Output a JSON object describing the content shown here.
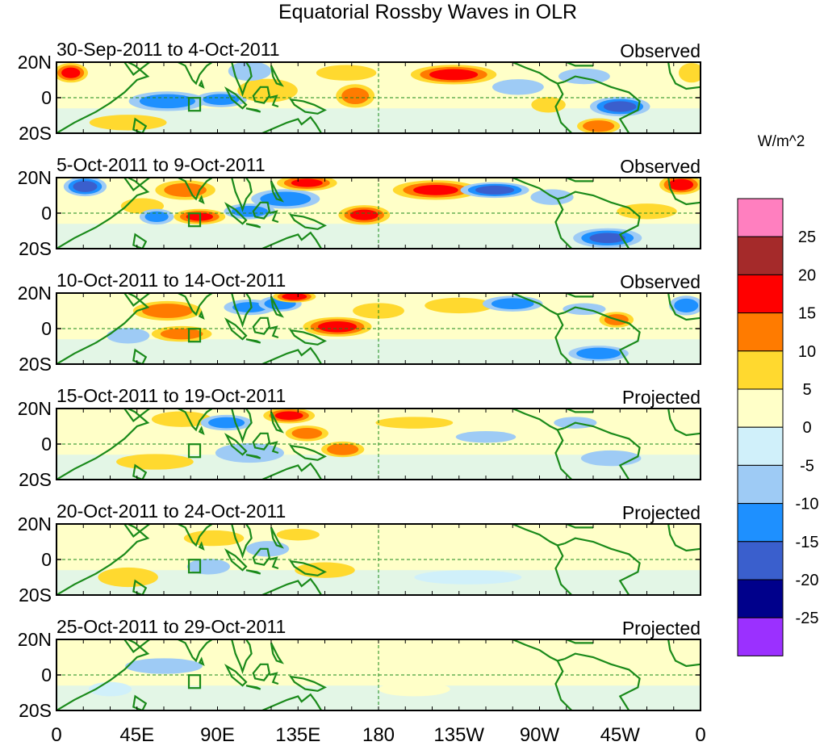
{
  "chart_data": {
    "type": "heatmap",
    "title": "Equatorial Rossby Waves in OLR",
    "xlabel": "",
    "ylabel": "",
    "x_ticks": [
      "0",
      "45E",
      "90E",
      "135E",
      "180",
      "135W",
      "90W",
      "45W",
      "0"
    ],
    "x_range": [
      0,
      360
    ],
    "y_ticks": [
      "20N",
      "0",
      "20S"
    ],
    "y_range": [
      -20,
      20
    ],
    "colorbar": {
      "units": "W/m^2",
      "levels": [
        -25,
        -20,
        -15,
        -10,
        -5,
        0,
        5,
        10,
        15,
        20,
        25
      ],
      "labels": [
        "25",
        "20",
        "15",
        "10",
        "5",
        "0",
        "-5",
        "-10",
        "-15",
        "-20",
        "-25"
      ],
      "colors": [
        "#9b30ff",
        "#00008b",
        "#3a5fcd",
        "#1e90ff",
        "#9ecbf5",
        "#d0f0fa",
        "#ffffc8",
        "#ffd92f",
        "#ff7b00",
        "#ff0000",
        "#a52a2a",
        "#ff7fbf"
      ]
    },
    "land_color": "#1a8a1a",
    "panels": [
      {
        "date_range": "30-Sep-2011 to 4-Oct-2011",
        "kind": "Observed",
        "anomalies": [
          {
            "lon": 8,
            "lat": 14,
            "rx": 8,
            "ry": 5,
            "v": 17
          },
          {
            "lon": 62,
            "lat": -2,
            "rx": 18,
            "ry": 5,
            "v": -13
          },
          {
            "lon": 92,
            "lat": -1,
            "rx": 12,
            "ry": 4,
            "v": -12
          },
          {
            "lon": 118,
            "lat": 4,
            "rx": 14,
            "ry": 6,
            "v": 9
          },
          {
            "lon": 108,
            "lat": 15,
            "rx": 10,
            "ry": 5,
            "v": -7
          },
          {
            "lon": 167,
            "lat": 1,
            "rx": 9,
            "ry": 6,
            "v": 12
          },
          {
            "lon": 162,
            "lat": 14,
            "rx": 14,
            "ry": 4,
            "v": 8
          },
          {
            "lon": 222,
            "lat": 13,
            "rx": 20,
            "ry": 5,
            "v": 18
          },
          {
            "lon": 258,
            "lat": 6,
            "rx": 12,
            "ry": 4,
            "v": -8
          },
          {
            "lon": 295,
            "lat": 12,
            "rx": 12,
            "ry": 4,
            "v": -8
          },
          {
            "lon": 315,
            "lat": -5,
            "rx": 14,
            "ry": 5,
            "v": -17
          },
          {
            "lon": 303,
            "lat": -16,
            "rx": 10,
            "ry": 4,
            "v": 14
          },
          {
            "lon": 275,
            "lat": -4,
            "rx": 8,
            "ry": 4,
            "v": 8
          },
          {
            "lon": 40,
            "lat": -14,
            "rx": 18,
            "ry": 4,
            "v": 7
          },
          {
            "lon": 355,
            "lat": 14,
            "rx": 6,
            "ry": 5,
            "v": 9
          }
        ]
      },
      {
        "date_range": "5-Oct-2011 to 9-Oct-2011",
        "kind": "Observed",
        "anomalies": [
          {
            "lon": 16,
            "lat": 15,
            "rx": 10,
            "ry": 5,
            "v": -18
          },
          {
            "lon": 48,
            "lat": 4,
            "rx": 10,
            "ry": 4,
            "v": 8
          },
          {
            "lon": 72,
            "lat": 13,
            "rx": 14,
            "ry": 5,
            "v": 12
          },
          {
            "lon": 56,
            "lat": -2,
            "rx": 8,
            "ry": 4,
            "v": -11
          },
          {
            "lon": 80,
            "lat": -2,
            "rx": 12,
            "ry": 4,
            "v": 16
          },
          {
            "lon": 108,
            "lat": 1,
            "rx": 12,
            "ry": 4,
            "v": -12
          },
          {
            "lon": 128,
            "lat": 8,
            "rx": 16,
            "ry": 5,
            "v": -14
          },
          {
            "lon": 140,
            "lat": 17,
            "rx": 14,
            "ry": 4,
            "v": 16
          },
          {
            "lon": 172,
            "lat": -1,
            "rx": 12,
            "ry": 5,
            "v": 17
          },
          {
            "lon": 212,
            "lat": 13,
            "rx": 20,
            "ry": 5,
            "v": 16
          },
          {
            "lon": 245,
            "lat": 13,
            "rx": 16,
            "ry": 4,
            "v": -18
          },
          {
            "lon": 277,
            "lat": 9,
            "rx": 10,
            "ry": 4,
            "v": -9
          },
          {
            "lon": 308,
            "lat": -14,
            "rx": 16,
            "ry": 5,
            "v": -16
          },
          {
            "lon": 349,
            "lat": 16,
            "rx": 10,
            "ry": 5,
            "v": 19
          },
          {
            "lon": 330,
            "lat": 1,
            "rx": 14,
            "ry": 4,
            "v": 6
          }
        ]
      },
      {
        "date_range": "10-Oct-2011 to 14-Oct-2011",
        "kind": "Observed",
        "anomalies": [
          {
            "lon": 62,
            "lat": 10,
            "rx": 16,
            "ry": 5,
            "v": 14
          },
          {
            "lon": 70,
            "lat": -3,
            "rx": 14,
            "ry": 4,
            "v": 12
          },
          {
            "lon": 40,
            "lat": -4,
            "rx": 10,
            "ry": 4,
            "v": -9
          },
          {
            "lon": 108,
            "lat": 12,
            "rx": 12,
            "ry": 4,
            "v": -10
          },
          {
            "lon": 125,
            "lat": 14,
            "rx": 10,
            "ry": 4,
            "v": -14
          },
          {
            "lon": 133,
            "lat": 18,
            "rx": 10,
            "ry": 3,
            "v": 19
          },
          {
            "lon": 157,
            "lat": 1,
            "rx": 16,
            "ry": 5,
            "v": 18
          },
          {
            "lon": 180,
            "lat": 10,
            "rx": 12,
            "ry": 4,
            "v": 7
          },
          {
            "lon": 225,
            "lat": 13,
            "rx": 16,
            "ry": 4,
            "v": 8
          },
          {
            "lon": 255,
            "lat": 14,
            "rx": 14,
            "ry": 4,
            "v": -12
          },
          {
            "lon": 295,
            "lat": 11,
            "rx": 10,
            "ry": 3,
            "v": -9
          },
          {
            "lon": 313,
            "lat": 5,
            "rx": 8,
            "ry": 4,
            "v": 12
          },
          {
            "lon": 303,
            "lat": -14,
            "rx": 14,
            "ry": 4,
            "v": -14
          },
          {
            "lon": 352,
            "lat": 13,
            "rx": 8,
            "ry": 5,
            "v": -12
          }
        ]
      },
      {
        "date_range": "15-Oct-2011 to 19-Oct-2011",
        "kind": "Projected",
        "anomalies": [
          {
            "lon": 70,
            "lat": 14,
            "rx": 14,
            "ry": 4,
            "v": 8
          },
          {
            "lon": 95,
            "lat": 12,
            "rx": 12,
            "ry": 4,
            "v": -12
          },
          {
            "lon": 108,
            "lat": -5,
            "rx": 16,
            "ry": 5,
            "v": -9
          },
          {
            "lon": 130,
            "lat": 16,
            "rx": 12,
            "ry": 4,
            "v": 17
          },
          {
            "lon": 140,
            "lat": 6,
            "rx": 10,
            "ry": 4,
            "v": 12
          },
          {
            "lon": 160,
            "lat": -3,
            "rx": 10,
            "ry": 4,
            "v": 14
          },
          {
            "lon": 55,
            "lat": -10,
            "rx": 18,
            "ry": 4,
            "v": 5
          },
          {
            "lon": 200,
            "lat": 12,
            "rx": 18,
            "ry": 3,
            "v": 5
          },
          {
            "lon": 240,
            "lat": 4,
            "rx": 14,
            "ry": 3,
            "v": -6
          },
          {
            "lon": 290,
            "lat": 12,
            "rx": 10,
            "ry": 3,
            "v": -6
          },
          {
            "lon": 310,
            "lat": -8,
            "rx": 14,
            "ry": 4,
            "v": -7
          }
        ]
      },
      {
        "date_range": "20-Oct-2011 to 24-Oct-2011",
        "kind": "Projected",
        "anomalies": [
          {
            "lon": 40,
            "lat": -10,
            "rx": 14,
            "ry": 5,
            "v": 7
          },
          {
            "lon": 88,
            "lat": 12,
            "rx": 14,
            "ry": 4,
            "v": 5
          },
          {
            "lon": 85,
            "lat": -4,
            "rx": 10,
            "ry": 4,
            "v": -9
          },
          {
            "lon": 118,
            "lat": 6,
            "rx": 10,
            "ry": 4,
            "v": -9
          },
          {
            "lon": 150,
            "lat": -6,
            "rx": 14,
            "ry": 4,
            "v": 7
          },
          {
            "lon": 135,
            "lat": 14,
            "rx": 10,
            "ry": 3,
            "v": 6
          },
          {
            "lon": 300,
            "lat": 8,
            "rx": 24,
            "ry": 6,
            "v": 3
          },
          {
            "lon": 230,
            "lat": -10,
            "rx": 30,
            "ry": 4,
            "v": -3
          }
        ]
      },
      {
        "date_range": "25-Oct-2011 to 29-Oct-2011",
        "kind": "Projected",
        "anomalies": [
          {
            "lon": 60,
            "lat": 5,
            "rx": 18,
            "ry": 4,
            "v": -6
          },
          {
            "lon": 120,
            "lat": 2,
            "rx": 20,
            "ry": 6,
            "v": 4
          },
          {
            "lon": 150,
            "lat": 12,
            "rx": 14,
            "ry": 3,
            "v": 4
          },
          {
            "lon": 200,
            "lat": -8,
            "rx": 20,
            "ry": 4,
            "v": 3
          },
          {
            "lon": 270,
            "lat": 6,
            "rx": 40,
            "ry": 5,
            "v": 3
          },
          {
            "lon": 30,
            "lat": -8,
            "rx": 12,
            "ry": 4,
            "v": -4
          }
        ]
      }
    ]
  }
}
